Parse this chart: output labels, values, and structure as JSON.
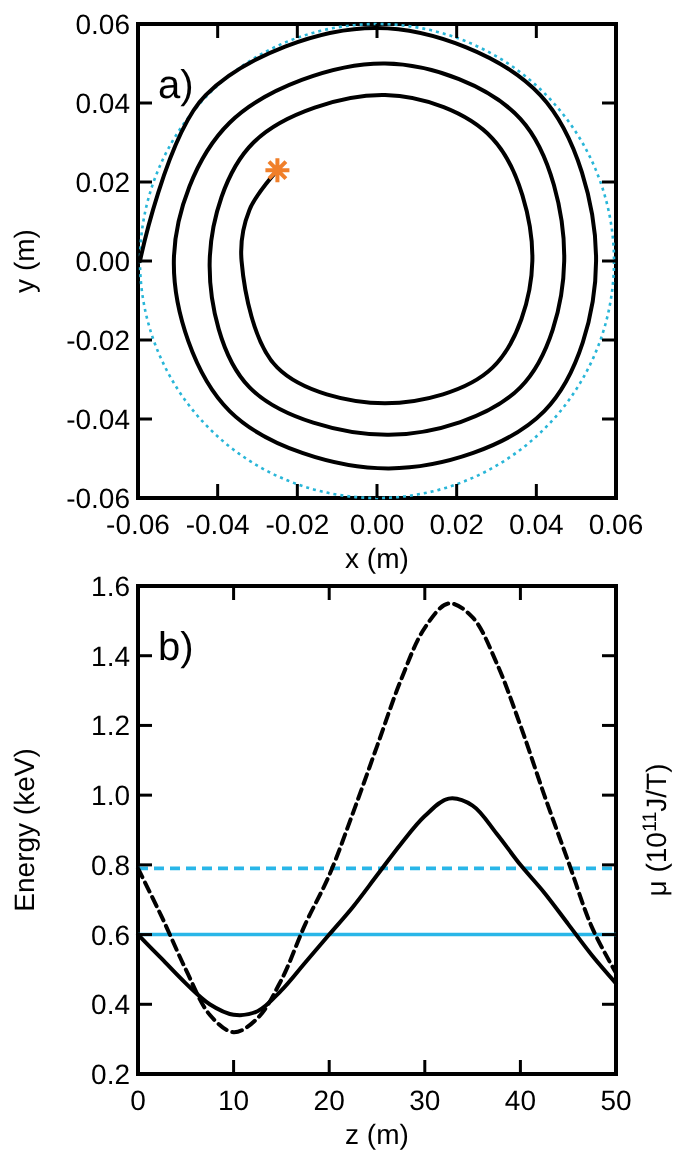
{
  "chart_data": [
    {
      "type": "line",
      "xlabel": "x (m)",
      "ylabel": "y (m)",
      "annotations": [
        "a)"
      ],
      "xlim": [
        -0.06,
        0.06
      ],
      "ylim": [
        -0.06,
        0.06
      ],
      "xticks": [
        {
          "value": -0.06,
          "label": "-0.06"
        },
        {
          "value": -0.04,
          "label": "-0.04"
        },
        {
          "value": -0.02,
          "label": "-0.02"
        },
        {
          "value": 0,
          "label": "0.00"
        },
        {
          "value": 0.02,
          "label": "0.02"
        },
        {
          "value": 0.04,
          "label": "0.04"
        },
        {
          "value": 0.06,
          "label": "0.06"
        }
      ],
      "yticks": [
        {
          "value": -0.06,
          "label": "-0.06"
        },
        {
          "value": -0.04,
          "label": "-0.04"
        },
        {
          "value": -0.02,
          "label": "-0.02"
        },
        {
          "value": 0,
          "label": "0.00"
        },
        {
          "value": 0.02,
          "label": "0.02"
        },
        {
          "value": 0.04,
          "label": "0.04"
        },
        {
          "value": 0.06,
          "label": "0.06"
        }
      ],
      "series": [
        {
          "type": "line",
          "color": "#000000",
          "line_style": "solid",
          "x": [
            -0.025,
            -0.032,
            -0.034,
            -0.025,
            0.002,
            0.029,
            0.039,
            0.029,
            0.002,
            -0.031,
            -0.042,
            -0.032,
            0.003,
            0.036,
            0.047,
            0.036,
            0.002,
            -0.037,
            -0.051,
            -0.037,
            0.003,
            0.042,
            0.055,
            0.041,
            0.0,
            -0.043,
            -0.0595
          ],
          "values": [
            0.023,
            0.013,
            0.0,
            -0.027,
            -0.036,
            -0.027,
            0.0,
            0.031,
            0.042,
            0.03,
            0.0,
            -0.032,
            -0.044,
            -0.032,
            0.0,
            0.036,
            0.05,
            0.035,
            0.0,
            -0.038,
            -0.0525,
            -0.038,
            0.0,
            0.042,
            0.059,
            0.042,
            0.0
          ]
        },
        {
          "type": "scatter",
          "color": "#f07f2a",
          "marker": "cross",
          "x": [
            -0.025
          ],
          "values": [
            0.023
          ]
        }
      ]
    },
    {
      "type": "line",
      "xlabel": "z (m)",
      "ylabel": "Energy (keV)",
      "y2label": "μ (10$^{11}$J/T)",
      "annotations": [
        "b)"
      ],
      "xlim": [
        0,
        50
      ],
      "ylim": [
        0.2,
        1.6
      ],
      "xticks": [
        0,
        10,
        20,
        30,
        40,
        50
      ],
      "yticks": [
        0.2,
        0.4,
        0.6,
        {
          "value": 0.8,
          "label": "0.8"
        },
        {
          "value": 1.0,
          "label": "1.0"
        },
        1.2,
        1.4,
        1.6
      ],
      "ref_lines": [
        {
          "axis": "y",
          "value": 0.6,
          "color": "#29b6e8",
          "line_style": "solid"
        },
        {
          "axis": "y",
          "value": 0.79,
          "color": "#29b6e8",
          "line_style": "dashed"
        }
      ],
      "series": [
        {
          "type": "line",
          "color": "#000000",
          "line_style": "solid",
          "x": [
            0,
            2.5,
            5,
            7.5,
            10,
            12.5,
            15,
            17.5,
            20,
            22.5,
            25,
            27.5,
            30,
            32.5,
            35,
            37.5,
            40,
            42.5,
            45,
            47.5,
            50
          ],
          "values": [
            0.6,
            0.53,
            0.46,
            0.4,
            0.37,
            0.38,
            0.44,
            0.52,
            0.6,
            0.68,
            0.77,
            0.86,
            0.94,
            0.99,
            0.97,
            0.89,
            0.8,
            0.72,
            0.63,
            0.54,
            0.46
          ]
        },
        {
          "type": "line",
          "color": "#000000",
          "line_style": "dashed",
          "x": [
            0,
            2.5,
            5,
            7.5,
            10,
            12.5,
            15,
            17.5,
            20,
            22.5,
            25,
            27.5,
            30,
            32.5,
            35,
            37.5,
            40,
            42.5,
            45,
            47.5,
            50
          ],
          "values": [
            0.79,
            0.65,
            0.5,
            0.37,
            0.32,
            0.36,
            0.47,
            0.63,
            0.77,
            0.95,
            1.14,
            1.33,
            1.48,
            1.55,
            1.51,
            1.38,
            1.2,
            1.0,
            0.81,
            0.62,
            0.49
          ]
        }
      ]
    }
  ]
}
